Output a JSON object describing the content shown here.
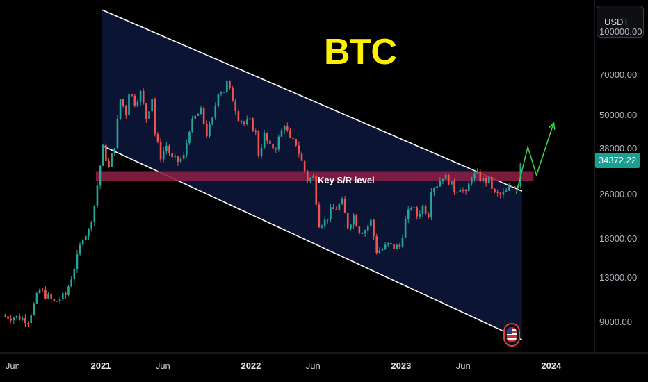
{
  "header": {
    "title": "BTC"
  },
  "toolbar": {
    "currency_label": "USDT"
  },
  "annotations": {
    "sr_label": "Key S/R level"
  },
  "price": {
    "last": "34372.22",
    "last_value": 34372.22
  },
  "colors": {
    "up": "#26a69a",
    "down": "#ef5350",
    "title": "#fff000",
    "channel_fill": "#0c1433",
    "sr_band": "#8b1f44",
    "projection": "#3fd13f"
  },
  "chart_data": {
    "type": "candlestick",
    "title": "BTC",
    "y_scale": "log",
    "ylim": [
      7000,
      130000
    ],
    "y_ticks": [
      {
        "value": 100000,
        "label": "100000.00"
      },
      {
        "value": 70000,
        "label": "70000.00"
      },
      {
        "value": 50000,
        "label": "50000.00"
      },
      {
        "value": 38000,
        "label": "38000.00"
      },
      {
        "value": 26000,
        "label": "26000.00"
      },
      {
        "value": 18000,
        "label": "18000.00"
      },
      {
        "value": 13000,
        "label": "13000.00"
      },
      {
        "value": 9000,
        "label": "9000.00"
      }
    ],
    "x_ticks": [
      {
        "label": "Jun",
        "date": "2020-06",
        "bold": false
      },
      {
        "label": "2021",
        "date": "2021-01",
        "bold": true
      },
      {
        "label": "Jun",
        "date": "2021-06",
        "bold": false
      },
      {
        "label": "2022",
        "date": "2022-01",
        "bold": true
      },
      {
        "label": "Jun",
        "date": "2022-06",
        "bold": false
      },
      {
        "label": "2023",
        "date": "2023-01",
        "bold": true
      },
      {
        "label": "Jun",
        "date": "2023-06",
        "bold": false
      },
      {
        "label": "2024",
        "date": "2024-01",
        "bold": true
      }
    ],
    "xlim": [
      "2020-05-01",
      "2024-04-15"
    ],
    "series_weekly_close": [
      {
        "date": "2020-05-10",
        "v": 9500
      },
      {
        "date": "2020-06-14",
        "v": 9400
      },
      {
        "date": "2020-07-12",
        "v": 9200
      },
      {
        "date": "2020-08-09",
        "v": 11800
      },
      {
        "date": "2020-09-13",
        "v": 10600
      },
      {
        "date": "2020-10-11",
        "v": 11300
      },
      {
        "date": "2020-10-25",
        "v": 13100
      },
      {
        "date": "2020-11-08",
        "v": 15400
      },
      {
        "date": "2020-11-22",
        "v": 18400
      },
      {
        "date": "2020-12-06",
        "v": 19200
      },
      {
        "date": "2020-12-20",
        "v": 23800
      },
      {
        "date": "2021-01-03",
        "v": 33000
      },
      {
        "date": "2021-01-10",
        "v": 38100
      },
      {
        "date": "2021-01-24",
        "v": 32300
      },
      {
        "date": "2021-02-07",
        "v": 39300
      },
      {
        "date": "2021-02-21",
        "v": 57400
      },
      {
        "date": "2021-03-07",
        "v": 51000
      },
      {
        "date": "2021-03-14",
        "v": 61100
      },
      {
        "date": "2021-03-28",
        "v": 55800
      },
      {
        "date": "2021-04-11",
        "v": 60200
      },
      {
        "date": "2021-04-25",
        "v": 49000
      },
      {
        "date": "2021-05-09",
        "v": 58000
      },
      {
        "date": "2021-05-16",
        "v": 43000
      },
      {
        "date": "2021-05-30",
        "v": 35700
      },
      {
        "date": "2021-06-13",
        "v": 39000
      },
      {
        "date": "2021-06-27",
        "v": 34700
      },
      {
        "date": "2021-07-11",
        "v": 34200
      },
      {
        "date": "2021-07-25",
        "v": 35400
      },
      {
        "date": "2021-08-08",
        "v": 45000
      },
      {
        "date": "2021-08-22",
        "v": 49200
      },
      {
        "date": "2021-09-05",
        "v": 51700
      },
      {
        "date": "2021-09-19",
        "v": 42900
      },
      {
        "date": "2021-10-03",
        "v": 48000
      },
      {
        "date": "2021-10-17",
        "v": 61500
      },
      {
        "date": "2021-10-31",
        "v": 61300
      },
      {
        "date": "2021-11-07",
        "v": 65500
      },
      {
        "date": "2021-11-21",
        "v": 57200
      },
      {
        "date": "2021-12-05",
        "v": 49400
      },
      {
        "date": "2021-12-19",
        "v": 46700
      },
      {
        "date": "2022-01-02",
        "v": 47300
      },
      {
        "date": "2022-01-16",
        "v": 43100
      },
      {
        "date": "2022-01-23",
        "v": 36200
      },
      {
        "date": "2022-02-06",
        "v": 42400
      },
      {
        "date": "2022-02-20",
        "v": 38300
      },
      {
        "date": "2022-03-06",
        "v": 38700
      },
      {
        "date": "2022-03-27",
        "v": 46800
      },
      {
        "date": "2022-04-10",
        "v": 40400
      },
      {
        "date": "2022-04-24",
        "v": 39700
      },
      {
        "date": "2022-05-08",
        "v": 34000
      },
      {
        "date": "2022-05-22",
        "v": 29400
      },
      {
        "date": "2022-06-05",
        "v": 29900
      },
      {
        "date": "2022-06-19",
        "v": 20500
      },
      {
        "date": "2022-07-03",
        "v": 20800
      },
      {
        "date": "2022-07-17",
        "v": 22600
      },
      {
        "date": "2022-07-31",
        "v": 23200
      },
      {
        "date": "2022-08-14",
        "v": 24300
      },
      {
        "date": "2022-08-28",
        "v": 20000
      },
      {
        "date": "2022-09-11",
        "v": 21800
      },
      {
        "date": "2022-09-25",
        "v": 19300
      },
      {
        "date": "2022-10-09",
        "v": 19400
      },
      {
        "date": "2022-10-23",
        "v": 20800
      },
      {
        "date": "2022-11-06",
        "v": 16300
      },
      {
        "date": "2022-11-20",
        "v": 16500
      },
      {
        "date": "2022-12-04",
        "v": 17100
      },
      {
        "date": "2022-12-18",
        "v": 16800
      },
      {
        "date": "2023-01-01",
        "v": 16900
      },
      {
        "date": "2023-01-15",
        "v": 20900
      },
      {
        "date": "2023-01-29",
        "v": 23700
      },
      {
        "date": "2023-02-12",
        "v": 21800
      },
      {
        "date": "2023-02-26",
        "v": 23500
      },
      {
        "date": "2023-03-12",
        "v": 22100
      },
      {
        "date": "2023-03-19",
        "v": 27500
      },
      {
        "date": "2023-04-02",
        "v": 28300
      },
      {
        "date": "2023-04-16",
        "v": 30300
      },
      {
        "date": "2023-04-30",
        "v": 29200
      },
      {
        "date": "2023-05-14",
        "v": 26900
      },
      {
        "date": "2023-05-28",
        "v": 27700
      },
      {
        "date": "2023-06-11",
        "v": 25900
      },
      {
        "date": "2023-06-25",
        "v": 30500
      },
      {
        "date": "2023-07-09",
        "v": 30300
      },
      {
        "date": "2023-07-23",
        "v": 29200
      },
      {
        "date": "2023-08-06",
        "v": 29100
      },
      {
        "date": "2023-08-20",
        "v": 26100
      },
      {
        "date": "2023-09-03",
        "v": 25800
      },
      {
        "date": "2023-09-17",
        "v": 26500
      },
      {
        "date": "2023-10-01",
        "v": 27900
      },
      {
        "date": "2023-10-15",
        "v": 28300
      },
      {
        "date": "2023-10-22",
        "v": 34372
      }
    ],
    "channel": {
      "upper": [
        {
          "date": "2021-01-03",
          "v": 120000
        },
        {
          "date": "2023-10-22",
          "v": 26700
        }
      ],
      "lower": [
        {
          "date": "2021-01-03",
          "v": 39000
        },
        {
          "date": "2023-10-22",
          "v": 7800
        }
      ]
    },
    "sr_band": {
      "from": 29000,
      "to": 31500,
      "start": "2020-12-20",
      "end": "2023-11-19",
      "label": "Key S/R level"
    },
    "projection": [
      {
        "date": "2023-10-08",
        "v": 26200
      },
      {
        "date": "2023-11-05",
        "v": 38500
      },
      {
        "date": "2023-11-26",
        "v": 30500
      },
      {
        "date": "2024-01-07",
        "v": 47000
      }
    ],
    "last_price": 34372.22
  }
}
